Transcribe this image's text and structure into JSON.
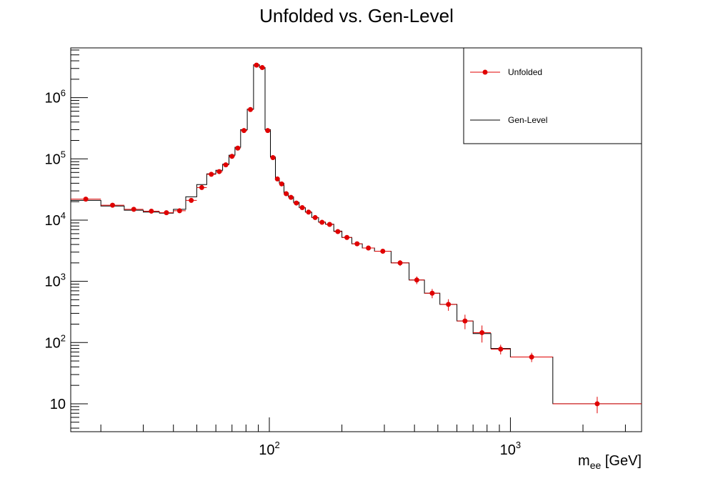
{
  "chart_data": {
    "type": "line",
    "title": "Unfolded vs. Gen-Level",
    "xlabel": "m",
    "xlabel_sub": "ee",
    "xlabel_unit": " [GeV]",
    "xscale": "log",
    "yscale": "log",
    "xlim": [
      15,
      3500
    ],
    "ylim": [
      3.5,
      6500000
    ],
    "grid": false,
    "legend_position": "top-right",
    "x_ticks": [
      {
        "value": 100,
        "base": "10",
        "exp": "2"
      },
      {
        "value": 1000,
        "base": "10",
        "exp": "3"
      }
    ],
    "y_ticks": [
      {
        "value": 10,
        "base": "10",
        "exp": ""
      },
      {
        "value": 100,
        "base": "10",
        "exp": "2"
      },
      {
        "value": 1000,
        "base": "10",
        "exp": "3"
      },
      {
        "value": 10000,
        "base": "10",
        "exp": "4"
      },
      {
        "value": 100000,
        "base": "10",
        "exp": "5"
      },
      {
        "value": 1000000,
        "base": "10",
        "exp": "6"
      }
    ],
    "bin_edges": [
      15,
      20,
      25,
      30,
      35,
      40,
      45,
      50,
      55,
      60,
      64,
      68,
      72,
      76,
      81,
      86,
      91,
      96,
      101,
      106,
      110,
      115,
      120,
      126,
      133,
      141,
      150,
      160,
      171,
      185,
      200,
      220,
      243,
      273,
      320,
      380,
      440,
      510,
      600,
      700,
      830,
      1000,
      1500,
      3500
    ],
    "series": [
      {
        "name": "Unfolded",
        "style": "markers",
        "color": "#e00000",
        "values": [
          22000,
          17500,
          15000,
          14000,
          13200,
          14200,
          21000,
          34000,
          56000,
          62000,
          80000,
          110000,
          150000,
          290000,
          640000,
          3400000,
          3100000,
          290000,
          105000,
          47000,
          39000,
          27000,
          23500,
          19000,
          16000,
          13500,
          11000,
          9200,
          8500,
          6500,
          5200,
          4100,
          3500,
          3100,
          2000,
          1050,
          640,
          420,
          225,
          145,
          78,
          58,
          10
        ],
        "errors": [
          800,
          600,
          500,
          450,
          450,
          500,
          700,
          900,
          1200,
          1300,
          1500,
          1800,
          2000,
          3000,
          5000,
          9000,
          9000,
          3000,
          1700,
          1100,
          1000,
          800,
          750,
          700,
          600,
          550,
          500,
          450,
          450,
          400,
          350,
          300,
          300,
          280,
          220,
          150,
          110,
          90,
          60,
          45,
          14,
          10,
          3
        ]
      },
      {
        "name": "Gen-Level",
        "style": "step",
        "color": "#000000",
        "values": [
          21000,
          17000,
          14500,
          13500,
          13000,
          15000,
          24000,
          38000,
          57000,
          65000,
          82000,
          115000,
          155000,
          300000,
          650000,
          3450000,
          3100000,
          300000,
          107000,
          48000,
          40000,
          27500,
          24000,
          19500,
          16000,
          13500,
          11000,
          9300,
          8600,
          6600,
          5200,
          4100,
          3500,
          3100,
          2000,
          1050,
          640,
          420,
          225,
          140,
          80,
          58,
          10
        ]
      }
    ]
  }
}
